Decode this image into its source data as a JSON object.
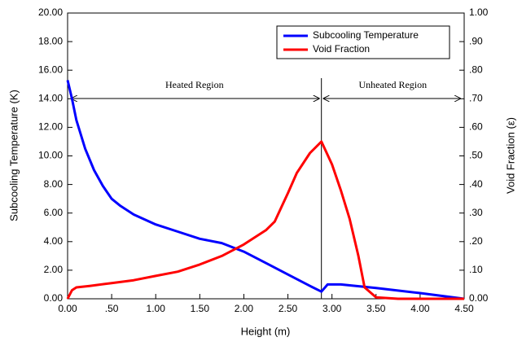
{
  "chart_data": {
    "type": "line",
    "xlabel": "Height (m)",
    "ylabel": "Subcooling Temperature (K)",
    "y2label": "Void Fraction (ε)",
    "annotations": [
      "Heated Region",
      "Unheated Region"
    ],
    "legend": "upper right",
    "xlim": [
      0,
      4.5
    ],
    "xticks": [
      {
        "value": 0,
        "label": "0.00"
      },
      {
        "value": 0.5,
        "label": ".50"
      },
      {
        "value": 1,
        "label": "1.00"
      },
      {
        "value": 1.5,
        "label": "1.50"
      },
      {
        "value": 2,
        "label": "2.00"
      },
      {
        "value": 2.5,
        "label": "2.50"
      },
      {
        "value": 3,
        "label": "3.00"
      },
      {
        "value": 3.5,
        "label": "3.50"
      },
      {
        "value": 4,
        "label": "4.00"
      },
      {
        "value": 4.5,
        "label": "4.50"
      }
    ],
    "ylim": [
      0,
      20
    ],
    "yticks": [
      {
        "value": 0,
        "label": "0.00"
      },
      {
        "value": 2,
        "label": "2.00"
      },
      {
        "value": 4,
        "label": "4.00"
      },
      {
        "value": 6,
        "label": "6.00"
      },
      {
        "value": 8,
        "label": "8.00"
      },
      {
        "value": 10,
        "label": "10.00"
      },
      {
        "value": 12,
        "label": "12.00"
      },
      {
        "value": 14,
        "label": "14.00"
      },
      {
        "value": 16,
        "label": "16.00"
      },
      {
        "value": 18,
        "label": "18.00"
      },
      {
        "value": 20,
        "label": "20.00"
      }
    ],
    "y2lim": [
      0,
      1
    ],
    "y2ticks": [
      {
        "value": 0,
        "label": "0.00"
      },
      {
        "value": 0.1,
        "label": ".10"
      },
      {
        "value": 0.2,
        "label": ".20"
      },
      {
        "value": 0.3,
        "label": ".30"
      },
      {
        "value": 0.4,
        "label": ".40"
      },
      {
        "value": 0.5,
        "label": ".50"
      },
      {
        "value": 0.6,
        "label": ".60"
      },
      {
        "value": 0.7,
        "label": ".70"
      },
      {
        "value": 0.8,
        "label": ".80"
      },
      {
        "value": 0.9,
        "label": ".90"
      },
      {
        "value": 1,
        "label": "1.00"
      }
    ],
    "series": [
      {
        "name": "Subcooling Temperature",
        "color": "#0000ff",
        "x": [
          0,
          0.05,
          0.1,
          0.2,
          0.3,
          0.4,
          0.5,
          0.6,
          0.75,
          1.0,
          1.25,
          1.5,
          1.75,
          2.0,
          2.25,
          2.5,
          2.75,
          2.88,
          2.95,
          3.1,
          3.5,
          4.0,
          4.5
        ],
        "values": [
          15.3,
          14.0,
          12.5,
          10.5,
          9.0,
          7.9,
          7.0,
          6.5,
          5.9,
          5.2,
          4.7,
          4.2,
          3.9,
          3.3,
          2.5,
          1.7,
          0.9,
          0.5,
          1.0,
          1.0,
          0.75,
          0.4,
          0.0
        ]
      },
      {
        "name": "Void Fraction",
        "color": "#ff0000",
        "axis": "y2",
        "x": [
          0,
          0.05,
          0.1,
          0.25,
          0.5,
          0.75,
          1.0,
          1.25,
          1.5,
          1.75,
          2.0,
          2.25,
          2.35,
          2.5,
          2.6,
          2.75,
          2.88,
          3.0,
          3.1,
          3.2,
          3.3,
          3.37,
          3.5,
          3.75,
          4.5
        ],
        "values": [
          0,
          0.03,
          0.04,
          0.045,
          0.055,
          0.065,
          0.08,
          0.095,
          0.12,
          0.15,
          0.19,
          0.24,
          0.27,
          0.37,
          0.44,
          0.51,
          0.55,
          0.47,
          0.38,
          0.28,
          0.15,
          0.04,
          0.005,
          0,
          0
        ]
      }
    ]
  }
}
